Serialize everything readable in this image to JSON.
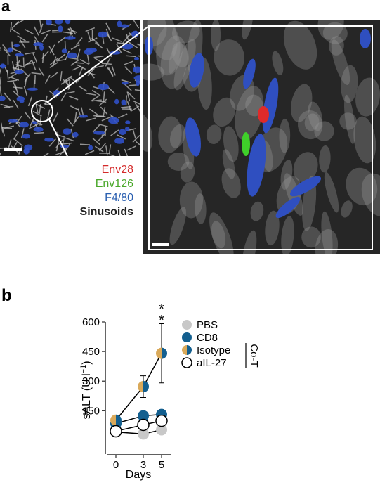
{
  "panel_a": {
    "label": "a",
    "legend": [
      {
        "text": "Env28",
        "color": "#d42a2a"
      },
      {
        "text": "Env126",
        "color": "#4aa82a"
      },
      {
        "text": "F4/80",
        "color": "#2a5fb0"
      },
      {
        "text": "Sinusoids",
        "color": "#222222"
      }
    ]
  },
  "panel_b_label": "b",
  "chart_data": {
    "type": "line",
    "x_label": "Days",
    "y_label": "sALT (U l",
    "y_label_sup": "−1",
    "y_label_end": ")",
    "x": [
      0,
      3,
      5
    ],
    "xlim": [
      -1,
      6
    ],
    "xticks": [
      0,
      3,
      5
    ],
    "ylim": [
      -70,
      600
    ],
    "yticks": [
      150,
      300,
      450,
      600
    ],
    "annotations": [
      "*",
      "*"
    ],
    "bracket_label": "Co-T",
    "series": [
      {
        "name": "PBS",
        "color": "#c8c8c8",
        "values": [
          42,
          32,
          53
        ],
        "errors": [
          12,
          15,
          15
        ]
      },
      {
        "name": "CD8",
        "color": "#135f8f",
        "values": [
          85,
          124,
          131
        ],
        "errors": [
          15,
          22,
          25
        ]
      },
      {
        "name": "Isotype",
        "color": [
          "#d9a95a",
          "#135f8f"
        ],
        "values": [
          102,
          272,
          441
        ],
        "errors": [
          25,
          55,
          150
        ]
      },
      {
        "name": "aIL-27",
        "color": "#ffffff",
        "edgecolor": "#000000",
        "values": [
          46,
          78,
          99
        ],
        "errors": [
          12,
          18,
          20
        ]
      }
    ]
  }
}
